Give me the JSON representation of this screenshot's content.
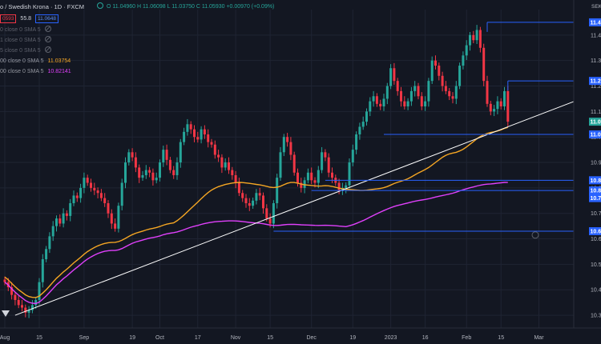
{
  "legend": {
    "title": "o / Swedish Krona · 1D · FXCM",
    "ohlc": "O 11.04960  H 11.06098  L 11.03750  C 11.05930  +0.00970 (+0.09%)",
    "sell": "0593",
    "spread": "55.8",
    "buy": "11.0648",
    "sma_rows": [
      {
        "label": "0 close 0 SMA 5",
        "value": "",
        "color": "#5d606b"
      },
      {
        "label": "1 close 0 SMA 5",
        "value": "",
        "color": "#5d606b"
      },
      {
        "label": "5 close 0 SMA 5",
        "value": "",
        "color": "#5d606b"
      },
      {
        "label": "00 close 0 SMA 5",
        "value": "11.03754",
        "color": "#f5a623"
      },
      {
        "label": "00 close 0 SMA 5",
        "value": "10.82141",
        "color": "#e040fb"
      }
    ]
  },
  "axis": {
    "currency": "SEK",
    "y_ticks": [
      "11.4",
      "11.3",
      "11.2",
      "11.1",
      "11.0",
      "10.9",
      "10.8",
      "10.7",
      "10.6",
      "10.5",
      "10.4",
      "10.3"
    ],
    "x_ticks": [
      "Aug",
      "15",
      "Sep",
      "19",
      "Oct",
      "17",
      "Nov",
      "15",
      "Dec",
      "19",
      "2023",
      "16",
      "Feb",
      "15",
      "Mar"
    ],
    "right_labels": [
      "11.4",
      "11.2",
      "11.0",
      "11.0",
      "10.8",
      "10.8",
      "10.7",
      "10.6"
    ]
  },
  "chart_data": {
    "type": "candlestick",
    "ylim": [
      10.25,
      11.5
    ],
    "x_ticks": [
      {
        "label": "Aug",
        "i": 0
      },
      {
        "label": "15",
        "i": 10
      },
      {
        "label": "Sep",
        "i": 23
      },
      {
        "label": "19",
        "i": 37
      },
      {
        "label": "Oct",
        "i": 45
      },
      {
        "label": "17",
        "i": 56
      },
      {
        "label": "Nov",
        "i": 67
      },
      {
        "label": "15",
        "i": 77
      },
      {
        "label": "Dec",
        "i": 89
      },
      {
        "label": "19",
        "i": 101
      },
      {
        "label": "2023",
        "i": 112
      },
      {
        "label": "16",
        "i": 122
      },
      {
        "label": "Feb",
        "i": 134
      },
      {
        "label": "15",
        "i": 144
      },
      {
        "label": "Mar",
        "i": 155
      }
    ],
    "n_bars": 147,
    "close": [
      10.43,
      10.41,
      10.38,
      10.36,
      10.34,
      10.33,
      10.31,
      10.32,
      10.34,
      10.36,
      10.43,
      10.52,
      10.56,
      10.61,
      10.65,
      10.68,
      10.66,
      10.7,
      10.69,
      10.74,
      10.77,
      10.76,
      10.8,
      10.84,
      10.82,
      10.8,
      10.79,
      10.78,
      10.76,
      10.74,
      10.7,
      10.66,
      10.64,
      10.73,
      10.82,
      10.9,
      10.94,
      10.92,
      10.88,
      10.84,
      10.85,
      10.87,
      10.86,
      10.83,
      10.84,
      10.9,
      10.95,
      10.91,
      10.87,
      10.85,
      10.9,
      10.98,
      11.02,
      11.05,
      11.03,
      11.0,
      10.99,
      11.03,
      11.01,
      10.98,
      10.97,
      10.93,
      10.92,
      10.88,
      10.9,
      10.87,
      10.85,
      10.82,
      10.78,
      10.76,
      10.74,
      10.73,
      10.75,
      10.78,
      10.77,
      10.72,
      10.68,
      10.66,
      10.74,
      10.84,
      10.94,
      11.0,
      10.98,
      10.93,
      10.86,
      10.82,
      10.8,
      10.83,
      10.86,
      10.83,
      10.82,
      10.87,
      10.94,
      10.92,
      10.86,
      10.84,
      10.82,
      10.79,
      10.8,
      10.81,
      10.9,
      10.95,
      11.01,
      11.04,
      11.06,
      11.1,
      11.14,
      11.16,
      11.13,
      11.12,
      11.15,
      11.2,
      11.27,
      11.22,
      11.18,
      11.14,
      11.12,
      11.14,
      11.18,
      11.2,
      11.16,
      11.12,
      11.14,
      11.22,
      11.3,
      11.28,
      11.24,
      11.2,
      11.18,
      11.16,
      11.15,
      11.2,
      11.28,
      11.32,
      11.36,
      11.4,
      11.38,
      11.42,
      11.35,
      11.22,
      11.13,
      11.1,
      11.11,
      11.14,
      11.12,
      11.18,
      11.06
    ],
    "sma_orange_last": 11.03754,
    "sma_magenta_last": 10.82141,
    "h_levels": [
      11.45,
      11.22,
      11.01,
      10.83,
      10.79,
      10.63
    ],
    "trendline": {
      "from": [
        3,
        10.3
      ],
      "to": [
        146,
        11.04
      ]
    }
  },
  "colors": {
    "bg": "#131722",
    "grid": "#1f2433",
    "up": "#26a69a",
    "down": "#f23645",
    "sma_orange": "#f5a623",
    "sma_magenta": "#e040fb",
    "hline": "#2962ff",
    "trend": "#ffffff",
    "axis_text": "#b2b5be"
  }
}
